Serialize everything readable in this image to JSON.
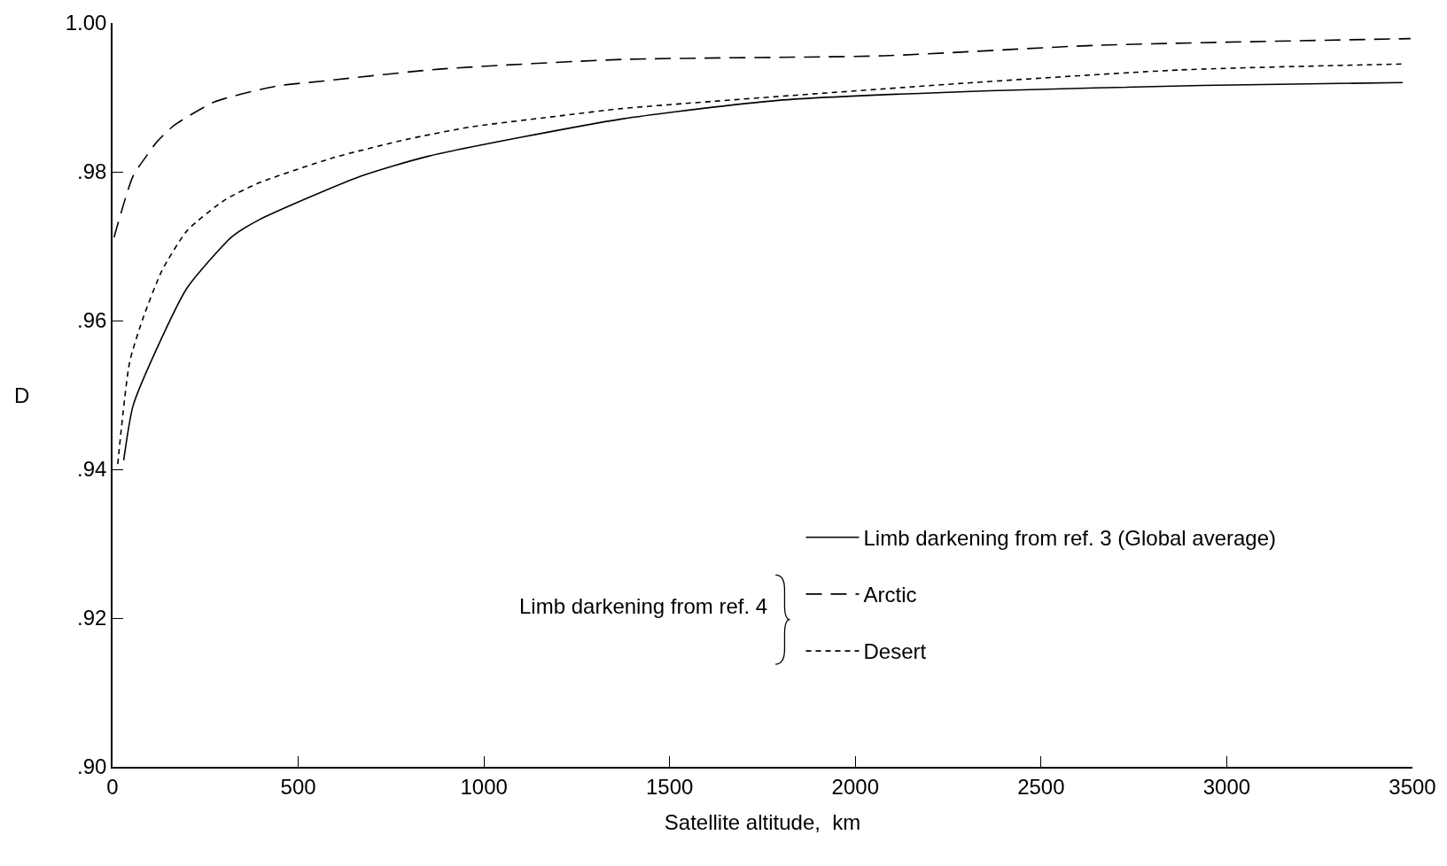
{
  "chart_data": {
    "type": "line",
    "xlabel": "Satellite altitude,  km",
    "ylabel": "D",
    "xlim": [
      0,
      3500
    ],
    "xticks": [
      0,
      500,
      1000,
      1500,
      2000,
      2500,
      3000,
      3500
    ],
    "ylim": [
      0.9,
      1.0
    ],
    "yticks": [
      {
        "value": 1.0,
        "label": "1.00"
      },
      {
        "value": 0.98,
        "label": ".98"
      },
      {
        "value": 0.96,
        "label": ".96"
      },
      {
        "value": 0.94,
        "label": ".94"
      },
      {
        "value": 0.92,
        "label": ".92"
      },
      {
        "value": 0.9,
        "label": ".90"
      }
    ],
    "legend": "bottom right",
    "marker": "none",
    "annotations": [
      "Limb darkening from ref. 4"
    ],
    "series": [
      {
        "name": "Limb darkening from ref. 3 (Global average)",
        "color": "#000000",
        "line_style": "solid",
        "x": [
          30,
          55,
          119,
          201,
          320,
          393,
          668,
          851,
          1371,
          1792,
          2362,
          2933,
          3474
        ],
        "values": [
          0.9412,
          0.9485,
          0.9562,
          0.9644,
          0.9712,
          0.9735,
          0.9794,
          0.9821,
          0.9871,
          0.9896,
          0.9909,
          0.9916,
          0.992
        ]
      },
      {
        "name": "Arctic",
        "color": "#000000",
        "line_style": "dashed",
        "x": [
          4,
          55,
          91,
          119,
          165,
          275,
          439,
          568,
          879,
          1371,
          2076,
          2648,
          3495
        ],
        "values": [
          0.9712,
          0.9794,
          0.9821,
          0.984,
          0.9862,
          0.9894,
          0.9915,
          0.9922,
          0.9938,
          0.9951,
          0.9956,
          0.997,
          0.9979
        ]
      },
      {
        "name": "Desert",
        "color": "#000000",
        "line_style": "dashed",
        "x": [
          14,
          46,
          82,
          133,
          201,
          302,
          394,
          595,
          796,
          961,
          1218,
          1371,
          2290,
          2876,
          3481
        ],
        "values": [
          0.9407,
          0.9544,
          0.9603,
          0.9667,
          0.9721,
          0.9762,
          0.9785,
          0.9819,
          0.9844,
          0.986,
          0.9876,
          0.9885,
          0.9919,
          0.9937,
          0.9945
        ]
      }
    ]
  }
}
